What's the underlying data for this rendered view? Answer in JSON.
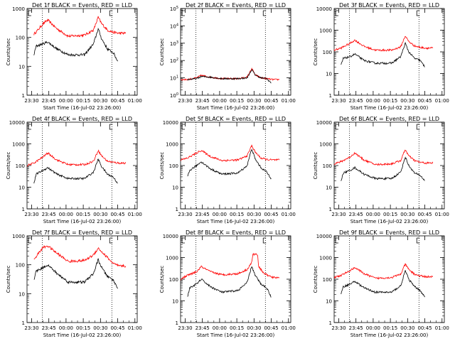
{
  "page": {
    "xtick_labels": [
      "23:30",
      "23:45",
      "00:00",
      "00:15",
      "00:30",
      "00:45",
      "01:00"
    ],
    "xlabel": "Start Time (16-Jul-02 23:26:00)",
    "ylabel": "Counts/sec",
    "colors": {
      "events": "#000000",
      "lld": "#ff0000",
      "axes": "#000000"
    }
  },
  "chart_data": [
    {
      "type": "line",
      "title": "Det 1f BLACK = Events, RED = LLD",
      "ylog": true,
      "ylim": [
        1,
        1000
      ],
      "yticks": [
        "1",
        "10",
        "100",
        "1000"
      ],
      "x": [
        0,
        10,
        20,
        30,
        40,
        50,
        60,
        70,
        80
      ],
      "series": [
        {
          "name": "Events",
          "color": "#000000",
          "x": [
            6,
            8,
            14,
            18,
            26,
            36,
            50,
            58,
            62,
            65,
            70,
            75,
            79
          ],
          "values": [
            25,
            50,
            60,
            70,
            40,
            25,
            25,
            60,
            200,
            90,
            40,
            30,
            15
          ]
        },
        {
          "name": "LLD",
          "color": "#ff0000",
          "x": [
            6,
            10,
            14,
            18,
            26,
            36,
            50,
            58,
            62,
            65,
            70,
            75,
            80,
            86
          ],
          "values": [
            130,
            190,
            300,
            400,
            200,
            110,
            120,
            180,
            500,
            300,
            180,
            150,
            140,
            140
          ]
        }
      ],
      "markers_x": [
        13.4,
        73.9
      ]
    },
    {
      "type": "line",
      "title": "Det 2f BLACK = Events, RED = LLD",
      "ylog": true,
      "ylim": [
        1,
        100000
      ],
      "yticks": [
        "10^0",
        "10^1",
        "10^2",
        "10^3",
        "10^4",
        "10^5"
      ],
      "series": [
        {
          "name": "Events",
          "color": "#000000",
          "x": [
            6,
            14,
            18,
            26,
            36,
            50,
            58,
            62,
            65,
            70,
            75,
            79
          ],
          "values": [
            8,
            9,
            12,
            11,
            9,
            9,
            10,
            30,
            15,
            10,
            9,
            5
          ]
        },
        {
          "name": "LLD",
          "color": "#ff0000",
          "x": [
            0,
            6,
            14,
            18,
            26,
            36,
            50,
            58,
            62,
            65,
            70,
            75,
            80,
            86
          ],
          "values": [
            8,
            8,
            10,
            14,
            11,
            9,
            9,
            11,
            35,
            15,
            10,
            9,
            8,
            8
          ]
        }
      ],
      "markers_x": [
        13.4,
        73.9
      ]
    },
    {
      "type": "line",
      "title": "Det 3f BLACK = Events, RED = LLD",
      "ylog": true,
      "ylim": [
        1,
        10000
      ],
      "yticks": [
        "1",
        "10",
        "100",
        "1000",
        "10000"
      ],
      "series": [
        {
          "name": "Events",
          "color": "#000000",
          "x": [
            6,
            8,
            14,
            18,
            26,
            36,
            50,
            58,
            62,
            65,
            70,
            75,
            79
          ],
          "values": [
            25,
            50,
            60,
            80,
            40,
            30,
            30,
            60,
            250,
            100,
            50,
            40,
            20
          ]
        },
        {
          "name": "LLD",
          "color": "#ff0000",
          "x": [
            0,
            6,
            14,
            18,
            26,
            36,
            50,
            58,
            62,
            65,
            70,
            75,
            80,
            86
          ],
          "values": [
            120,
            150,
            250,
            350,
            180,
            120,
            120,
            170,
            550,
            300,
            190,
            160,
            150,
            150
          ]
        }
      ],
      "markers_x": [
        13.4,
        73.9
      ]
    },
    {
      "type": "line",
      "title": "Det 4f BLACK = Events, RED = LLD",
      "ylog": true,
      "ylim": [
        1,
        10000
      ],
      "yticks": [
        "1",
        "10",
        "100",
        "1000",
        "10000"
      ],
      "series": [
        {
          "name": "Events",
          "color": "#000000",
          "x": [
            6,
            8,
            14,
            18,
            26,
            36,
            50,
            58,
            62,
            65,
            70,
            75,
            79
          ],
          "values": [
            15,
            40,
            60,
            80,
            40,
            25,
            25,
            50,
            200,
            90,
            40,
            30,
            15
          ]
        },
        {
          "name": "LLD",
          "color": "#ff0000",
          "x": [
            0,
            6,
            14,
            18,
            26,
            36,
            50,
            58,
            62,
            65,
            70,
            75,
            80,
            86
          ],
          "values": [
            100,
            130,
            250,
            380,
            180,
            110,
            110,
            160,
            500,
            280,
            160,
            140,
            130,
            130
          ]
        }
      ],
      "markers_x": [
        13.4,
        73.9
      ]
    },
    {
      "type": "line",
      "title": "Det 5f BLACK = Events, RED = LLD",
      "ylog": true,
      "ylim": [
        1,
        10000
      ],
      "yticks": [
        "1",
        "10",
        "100",
        "1000",
        "10000"
      ],
      "series": [
        {
          "name": "Events",
          "color": "#000000",
          "x": [
            6,
            8,
            14,
            18,
            26,
            36,
            50,
            58,
            62,
            65,
            70,
            75,
            79
          ],
          "values": [
            30,
            60,
            100,
            150,
            70,
            40,
            45,
            100,
            600,
            200,
            80,
            50,
            25
          ]
        },
        {
          "name": "LLD",
          "color": "#ff0000",
          "x": [
            0,
            6,
            14,
            18,
            26,
            36,
            50,
            58,
            62,
            65,
            70,
            75,
            80,
            86
          ],
          "values": [
            180,
            220,
            380,
            500,
            260,
            170,
            180,
            280,
            850,
            420,
            220,
            190,
            180,
            180
          ]
        }
      ],
      "markers_x": [
        13.4,
        73.9
      ]
    },
    {
      "type": "line",
      "title": "Det 6f BLACK = Events, RED = LLD",
      "ylog": true,
      "ylim": [
        1,
        10000
      ],
      "yticks": [
        "1",
        "10",
        "100",
        "1000",
        "10000"
      ],
      "series": [
        {
          "name": "Events",
          "color": "#000000",
          "x": [
            6,
            8,
            14,
            18,
            26,
            36,
            50,
            58,
            62,
            65,
            70,
            75,
            79
          ],
          "values": [
            20,
            45,
            60,
            80,
            40,
            25,
            25,
            50,
            250,
            100,
            45,
            35,
            20
          ]
        },
        {
          "name": "LLD",
          "color": "#ff0000",
          "x": [
            0,
            6,
            14,
            18,
            26,
            36,
            50,
            58,
            62,
            65,
            70,
            75,
            80,
            86
          ],
          "values": [
            120,
            150,
            250,
            380,
            180,
            110,
            120,
            170,
            550,
            280,
            170,
            140,
            130,
            130
          ]
        }
      ],
      "markers_x": [
        13.4,
        73.9
      ]
    },
    {
      "type": "line",
      "title": "Det 7f BLACK = Events, RED = LLD",
      "ylog": true,
      "ylim": [
        1,
        1000
      ],
      "yticks": [
        "1",
        "10",
        "100",
        "1000"
      ],
      "series": [
        {
          "name": "Events",
          "color": "#000000",
          "x": [
            6,
            8,
            14,
            18,
            26,
            36,
            50,
            58,
            62,
            65,
            70,
            75,
            79
          ],
          "values": [
            30,
            60,
            80,
            100,
            50,
            25,
            25,
            50,
            150,
            80,
            40,
            30,
            15
          ]
        },
        {
          "name": "LLD",
          "color": "#ff0000",
          "x": [
            6,
            10,
            14,
            18,
            26,
            36,
            50,
            58,
            62,
            65,
            70,
            75,
            80,
            86
          ],
          "values": [
            150,
            250,
            400,
            450,
            250,
            130,
            140,
            220,
            380,
            280,
            180,
            110,
            90,
            90
          ]
        }
      ],
      "markers_x": [
        13.4,
        73.9
      ]
    },
    {
      "type": "line",
      "title": "Det 8f BLACK = Events, RED = LLD",
      "ylog": true,
      "ylim": [
        1,
        10000
      ],
      "yticks": [
        "1",
        "10",
        "100",
        "1000",
        "10000"
      ],
      "series": [
        {
          "name": "Events",
          "color": "#000000",
          "x": [
            6,
            8,
            14,
            18,
            26,
            36,
            50,
            58,
            62,
            65,
            70,
            75,
            79
          ],
          "values": [
            15,
            40,
            60,
            100,
            45,
            25,
            30,
            70,
            400,
            150,
            60,
            40,
            15
          ]
        },
        {
          "name": "LLD",
          "color": "#ff0000",
          "x": [
            0,
            6,
            14,
            18,
            26,
            36,
            50,
            58,
            62,
            63,
            67,
            68,
            72,
            76,
            80,
            86
          ],
          "values": [
            100,
            150,
            220,
            380,
            220,
            160,
            180,
            280,
            600,
            1400,
            1400,
            400,
            200,
            150,
            120,
            120
          ]
        }
      ],
      "markers_x": [
        13.4,
        73.9
      ]
    },
    {
      "type": "line",
      "title": "Det 9f BLACK = Events, RED = LLD",
      "ylog": true,
      "ylim": [
        1,
        10000
      ],
      "yticks": [
        "1",
        "10",
        "100",
        "1000",
        "10000"
      ],
      "series": [
        {
          "name": "Events",
          "color": "#000000",
          "x": [
            6,
            8,
            14,
            18,
            26,
            36,
            50,
            58,
            62,
            65,
            70,
            75,
            79
          ],
          "values": [
            20,
            45,
            60,
            80,
            40,
            25,
            25,
            50,
            250,
            100,
            45,
            30,
            15
          ]
        },
        {
          "name": "LLD",
          "color": "#ff0000",
          "x": [
            0,
            6,
            14,
            18,
            26,
            36,
            50,
            58,
            62,
            65,
            70,
            75,
            80,
            86
          ],
          "values": [
            120,
            150,
            250,
            350,
            180,
            110,
            120,
            170,
            500,
            280,
            170,
            140,
            130,
            130
          ]
        }
      ],
      "markers_x": [
        13.4,
        73.9
      ]
    }
  ]
}
